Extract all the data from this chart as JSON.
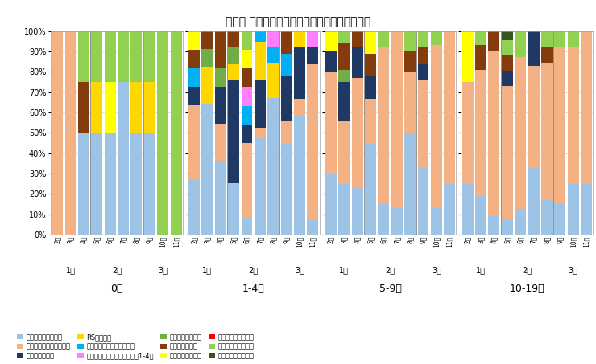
{
  "title": "年齢別 病原体検出割合の推移（不検出を除く）",
  "age_groups": [
    "0歳",
    "1-4歳",
    "5-9歳",
    "10-19歳"
  ],
  "weeks": [
    2,
    3,
    4,
    5,
    6,
    7,
    8,
    9,
    10,
    11
  ],
  "pathogens": [
    "新型コロナウイルス",
    "インフルエンザウイルス",
    "ライノウイルス",
    "RSウイルス",
    "ヒトメタニューモウイルス",
    "パラインフルエンザウイルス1-4型",
    "ヒトボカウイルス",
    "アデノウイルス",
    "エンテロウイルス",
    "ヒトパレコウイルス",
    "ヒトコロナウイルス",
    "肺炎マイコプラズマ"
  ],
  "colors": [
    "#9DC3E6",
    "#F4B183",
    "#1F3864",
    "#FFD700",
    "#00B0F0",
    "#FF80FF",
    "#70AD47",
    "#843C0C",
    "#FFFF00",
    "#FF0000",
    "#92D050",
    "#375623"
  ],
  "data": {
    "0歳": {
      "新型コロナウイルス": [
        0,
        0,
        50,
        50,
        50,
        75,
        50,
        50,
        0,
        0
      ],
      "インフルエンザウイルス": [
        100,
        100,
        0,
        0,
        0,
        0,
        0,
        0,
        0,
        0
      ],
      "ライノウイルス": [
        0,
        0,
        0,
        0,
        0,
        0,
        0,
        0,
        0,
        0
      ],
      "RSウイルス": [
        0,
        0,
        0,
        25,
        0,
        0,
        25,
        25,
        0,
        0
      ],
      "ヒトメタニューモウイルス": [
        0,
        0,
        0,
        0,
        0,
        0,
        0,
        0,
        0,
        0
      ],
      "パラインフルエンザウイルス1-4型": [
        0,
        0,
        0,
        0,
        0,
        0,
        0,
        0,
        0,
        0
      ],
      "ヒトボカウイルス": [
        0,
        0,
        0,
        0,
        0,
        0,
        0,
        0,
        0,
        0
      ],
      "アデノウイルス": [
        0,
        0,
        25,
        0,
        0,
        0,
        0,
        0,
        0,
        0
      ],
      "エンテロウイルス": [
        0,
        0,
        0,
        0,
        25,
        0,
        0,
        0,
        0,
        0
      ],
      "ヒトパレコウイルス": [
        0,
        0,
        0,
        0,
        0,
        0,
        0,
        0,
        0,
        0
      ],
      "ヒトコロナウイルス": [
        0,
        0,
        25,
        25,
        25,
        25,
        25,
        25,
        100,
        100
      ],
      "肺炎マイコプラズマ": [
        0,
        0,
        0,
        0,
        0,
        0,
        0,
        0,
        0,
        0
      ]
    },
    "1-4歳": {
      "新型コロナウイルス": [
        27,
        64,
        36,
        25,
        8,
        46,
        67,
        44,
        58,
        8
      ],
      "インフルエンザウイルス": [
        36,
        0,
        18,
        0,
        36,
        5,
        0,
        11,
        8,
        75
      ],
      "ライノウイルス": [
        9,
        0,
        18,
        50,
        9,
        23,
        0,
        22,
        25,
        8
      ],
      "RSウイルス": [
        0,
        18,
        0,
        8,
        0,
        18,
        17,
        0,
        8,
        0
      ],
      "ヒトメタニューモウイルス": [
        9,
        0,
        0,
        0,
        9,
        5,
        8,
        11,
        0,
        0
      ],
      "パラインフルエンザウイルス1-4型": [
        0,
        0,
        0,
        0,
        9,
        0,
        8,
        0,
        0,
        8
      ],
      "ヒトボカウイルス": [
        0,
        9,
        9,
        8,
        0,
        0,
        0,
        0,
        0,
        0
      ],
      "アデノウイルス": [
        9,
        9,
        18,
        8,
        9,
        0,
        0,
        11,
        0,
        0
      ],
      "エンテロウイルス": [
        9,
        0,
        0,
        0,
        9,
        0,
        0,
        0,
        0,
        0
      ],
      "ヒトパレコウイルス": [
        0,
        0,
        0,
        0,
        0,
        0,
        0,
        0,
        0,
        0
      ],
      "ヒトコロナウイルス": [
        0,
        0,
        0,
        0,
        9,
        0,
        0,
        0,
        0,
        0
      ],
      "肺炎マイコプラズマ": [
        0,
        0,
        0,
        0,
        0,
        0,
        0,
        0,
        0,
        0
      ]
    },
    "5-9歳": {
      "新型コロナウイルス": [
        30,
        25,
        23,
        44,
        15,
        14,
        50,
        33,
        14,
        25
      ],
      "インフルエンザウイルス": [
        50,
        31,
        54,
        22,
        77,
        86,
        30,
        42,
        79,
        75
      ],
      "ライノウイルス": [
        10,
        19,
        15,
        11,
        0,
        0,
        0,
        8,
        0,
        0
      ],
      "RSウイルス": [
        0,
        0,
        0,
        0,
        0,
        0,
        0,
        0,
        0,
        0
      ],
      "ヒトメタニューモウイルス": [
        0,
        0,
        0,
        0,
        0,
        0,
        0,
        0,
        0,
        0
      ],
      "パラインフルエンザウイルス1-4型": [
        0,
        0,
        0,
        0,
        0,
        0,
        0,
        0,
        0,
        0
      ],
      "ヒトボカウイルス": [
        0,
        6,
        0,
        0,
        0,
        0,
        0,
        0,
        0,
        0
      ],
      "アデノウイルス": [
        0,
        13,
        8,
        11,
        0,
        0,
        10,
        8,
        0,
        0
      ],
      "エンテロウイルス": [
        10,
        0,
        0,
        11,
        0,
        0,
        0,
        0,
        0,
        0
      ],
      "ヒトパレコウイルス": [
        0,
        0,
        0,
        0,
        0,
        0,
        0,
        0,
        0,
        0
      ],
      "ヒトコロナウイルス": [
        0,
        6,
        0,
        0,
        8,
        0,
        10,
        8,
        7,
        0
      ],
      "肺炎マイコプラズマ": [
        0,
        0,
        0,
        0,
        0,
        0,
        0,
        0,
        0,
        0
      ]
    },
    "10-19歳": {
      "新型コロナウイルス": [
        25,
        19,
        10,
        8,
        13,
        33,
        17,
        15,
        25,
        25
      ],
      "インフルエンザウイルス": [
        50,
        62,
        80,
        71,
        75,
        50,
        67,
        77,
        67,
        75
      ],
      "ライノウイルス": [
        0,
        0,
        0,
        8,
        0,
        17,
        0,
        0,
        0,
        0
      ],
      "RSウイルス": [
        0,
        0,
        0,
        0,
        0,
        0,
        0,
        0,
        0,
        0
      ],
      "ヒトメタニューモウイルス": [
        0,
        0,
        0,
        0,
        0,
        0,
        0,
        0,
        0,
        0
      ],
      "パラインフルエンザウイルス1-4型": [
        0,
        0,
        0,
        0,
        0,
        0,
        0,
        0,
        0,
        0
      ],
      "ヒトボカウイルス": [
        0,
        0,
        0,
        0,
        0,
        0,
        0,
        0,
        0,
        0
      ],
      "アデノウイルス": [
        0,
        12,
        10,
        8,
        0,
        0,
        8,
        0,
        0,
        0
      ],
      "エンテロウイルス": [
        25,
        0,
        0,
        0,
        0,
        0,
        0,
        0,
        0,
        0
      ],
      "ヒトパレコウイルス": [
        0,
        0,
        0,
        0,
        0,
        0,
        0,
        0,
        0,
        0
      ],
      "ヒトコロナウイルス": [
        0,
        7,
        0,
        8,
        13,
        0,
        8,
        8,
        8,
        0
      ],
      "肺炎マイコプラズマ": [
        0,
        0,
        0,
        5,
        0,
        0,
        0,
        0,
        0,
        0
      ]
    }
  },
  "month_dividers": [
    2.5,
    6.5
  ],
  "month_centers": [
    1.0,
    4.5,
    8.0
  ],
  "month_names": [
    "1月",
    "2月",
    "3月"
  ],
  "figsize": [
    7.4,
    4.53
  ],
  "dpi": 100
}
